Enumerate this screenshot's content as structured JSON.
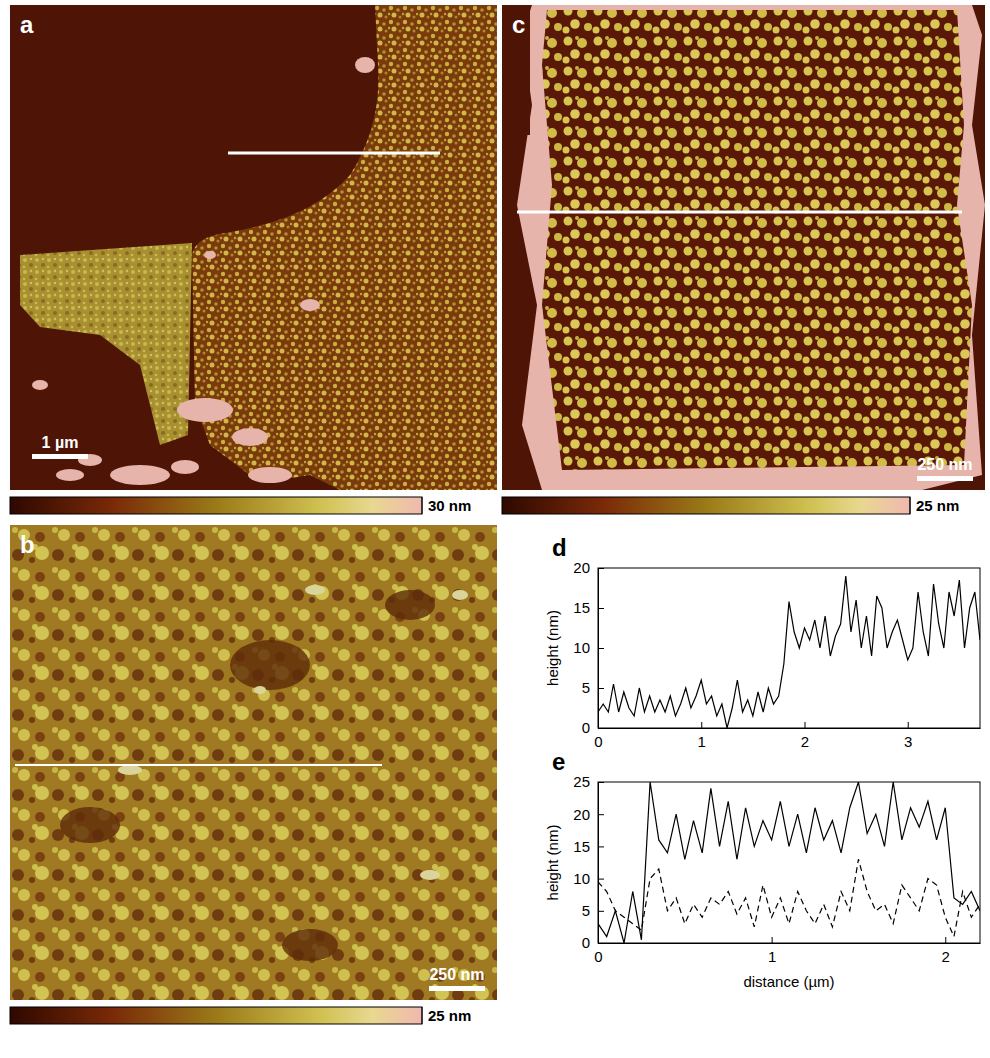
{
  "chart_data": [
    {
      "type": "image",
      "panel": "a",
      "scale_bar": "1 µm",
      "colorbar_range": [
        0,
        30
      ],
      "colorbar_ticks": [
        {
          "value": 30,
          "label": "30 nm"
        }
      ]
    },
    {
      "type": "image",
      "panel": "b",
      "scale_bar": "250 nm",
      "colorbar_range": [
        0,
        25
      ],
      "colorbar_ticks": [
        {
          "value": 25,
          "label": "25 nm"
        }
      ]
    },
    {
      "type": "image",
      "panel": "c",
      "scale_bar": "250 nm",
      "colorbar_range": [
        0,
        25
      ],
      "colorbar_ticks": [
        {
          "value": 25,
          "label": "25 nm"
        }
      ]
    },
    {
      "type": "line",
      "panel": "d",
      "ylabel": "height (nm)",
      "x": [
        0,
        0.05,
        0.1,
        0.15,
        0.2,
        0.25,
        0.3,
        0.35,
        0.4,
        0.45,
        0.5,
        0.55,
        0.6,
        0.65,
        0.7,
        0.75,
        0.8,
        0.85,
        0.9,
        0.95,
        1,
        1.05,
        1.1,
        1.15,
        1.2,
        1.25,
        1.3,
        1.35,
        1.4,
        1.45,
        1.5,
        1.55,
        1.6,
        1.65,
        1.7,
        1.75,
        1.8,
        1.85,
        1.9,
        1.95,
        2,
        2.05,
        2.1,
        2.15,
        2.2,
        2.25,
        2.3,
        2.35,
        2.4,
        2.45,
        2.5,
        2.55,
        2.6,
        2.65,
        2.7,
        2.75,
        2.8,
        2.85,
        2.9,
        2.95,
        3,
        3.05,
        3.1,
        3.15,
        3.2,
        3.25,
        3.3,
        3.35,
        3.4,
        3.45,
        3.5,
        3.55,
        3.6,
        3.65,
        3.7
      ],
      "series": [
        {
          "color": "#000000",
          "line_style": "solid",
          "values": [
            2,
            3,
            2,
            5.5,
            2,
            4.5,
            2.5,
            1.5,
            5,
            2,
            4,
            2,
            3.5,
            2,
            4,
            1.5,
            3,
            5,
            2.5,
            4,
            6,
            3,
            4,
            1.5,
            3,
            0,
            2.5,
            6,
            2,
            3.5,
            1.5,
            4.5,
            2,
            5,
            3,
            4,
            8,
            15.8,
            12,
            10,
            12.5,
            11,
            13.5,
            10,
            14,
            9,
            11.5,
            13,
            19,
            12,
            16,
            10,
            14,
            9,
            16.5,
            15,
            10,
            12,
            13.5,
            11,
            8.5,
            10,
            17,
            12,
            9,
            18,
            13,
            10,
            17,
            14,
            18.5,
            10,
            15,
            17,
            11
          ]
        }
      ],
      "xlim": [
        0,
        3.7
      ],
      "xticks": [
        0,
        1,
        2,
        3
      ],
      "ylim": [
        0,
        20
      ],
      "yticks": [
        0,
        5,
        10,
        15,
        20
      ]
    },
    {
      "type": "line",
      "panel": "e",
      "xlabel": "distance (µm)",
      "ylabel": "height (nm)",
      "x": [
        0,
        0.05,
        0.1,
        0.15,
        0.2,
        0.25,
        0.3,
        0.35,
        0.4,
        0.45,
        0.5,
        0.55,
        0.6,
        0.65,
        0.7,
        0.75,
        0.8,
        0.85,
        0.9,
        0.95,
        1,
        1.05,
        1.1,
        1.15,
        1.2,
        1.25,
        1.3,
        1.35,
        1.4,
        1.45,
        1.5,
        1.55,
        1.6,
        1.65,
        1.7,
        1.75,
        1.8,
        1.85,
        1.9,
        1.95,
        2,
        2.05,
        2.1,
        2.15,
        2.2
      ],
      "series": [
        {
          "color": "#000000",
          "line_style": "solid",
          "values": [
            3,
            1,
            5,
            0,
            8,
            0.5,
            25,
            16,
            14,
            20,
            13,
            19,
            14,
            24,
            15,
            22,
            13,
            21,
            15,
            19,
            16,
            22,
            15,
            20,
            14,
            21,
            16,
            19,
            14,
            21,
            25,
            17,
            20,
            15,
            25,
            16,
            21,
            18,
            22,
            16,
            21,
            7,
            6,
            8,
            5
          ]
        },
        {
          "color": "#000000",
          "line_style": "dashed",
          "values": [
            9.5,
            8,
            5,
            4,
            3,
            2,
            10,
            11.5,
            5,
            7,
            3,
            6,
            4,
            7,
            6,
            8,
            4.5,
            7,
            2.5,
            9,
            4,
            7,
            3,
            8,
            5,
            3,
            6,
            2.5,
            8,
            5,
            13,
            8,
            5,
            6,
            3,
            9,
            7,
            5,
            10,
            9,
            4,
            1,
            8,
            4,
            6
          ]
        }
      ],
      "xlim": [
        0,
        2.2
      ],
      "xticks": [
        0,
        1,
        2
      ],
      "ylim": [
        0,
        25
      ],
      "yticks": [
        0,
        5,
        10,
        15,
        20,
        25
      ]
    }
  ]
}
